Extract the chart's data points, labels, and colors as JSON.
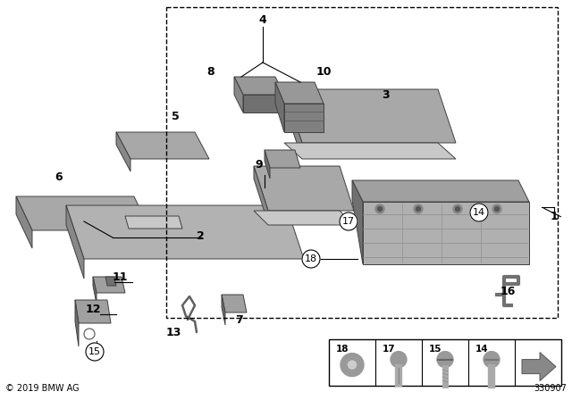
{
  "background_color": "#ffffff",
  "diagram_number": "330907",
  "copyright": "© 2019 BMW AG",
  "gray_top": "#b0b0b0",
  "gray_face": "#a8a8a8",
  "gray_side": "#888888",
  "gray_dark": "#707070",
  "gray_light": "#c8c8c8",
  "border_color": "#000000"
}
